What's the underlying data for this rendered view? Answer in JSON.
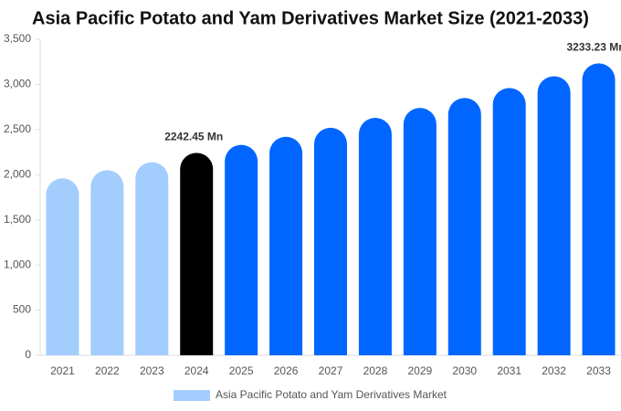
{
  "chart_data": {
    "type": "bar",
    "title": "Asia Pacific Potato and Yam Derivatives Market Size (2021-2033)",
    "categories": [
      "2021",
      "2022",
      "2023",
      "2024",
      "2025",
      "2026",
      "2027",
      "2028",
      "2029",
      "2030",
      "2031",
      "2032",
      "2033"
    ],
    "series": [
      {
        "name": "Asia Pacific Potato and Yam Derivatives Market",
        "color": "#a3cdfd",
        "colors": [
          "#a3cdfd",
          "#a3cdfd",
          "#a3cdfd",
          "#000000",
          "#0066ff",
          "#0066ff",
          "#0066ff",
          "#0066ff",
          "#0066ff",
          "#0066ff",
          "#0066ff",
          "#0066ff",
          "#0066ff"
        ],
        "values": [
          1960,
          2050,
          2140,
          2242.45,
          2330,
          2420,
          2520,
          2630,
          2740,
          2850,
          2960,
          3090,
          3233.23
        ],
        "value_labels": [
          null,
          null,
          null,
          "2242.45 Mn",
          null,
          null,
          null,
          null,
          null,
          null,
          null,
          null,
          "3233.23 Mn"
        ]
      }
    ],
    "ylim": [
      0,
      3500
    ],
    "yticks": [
      0,
      500,
      {
        "value": 1000,
        "label": "1,000"
      },
      {
        "value": 1500,
        "label": "1,500"
      },
      {
        "value": 2000,
        "label": "2,000"
      },
      {
        "value": 2500,
        "label": "2,500"
      },
      {
        "value": 3000,
        "label": "3,000"
      },
      {
        "value": 3500,
        "label": "3,500"
      }
    ],
    "grid": false
  }
}
